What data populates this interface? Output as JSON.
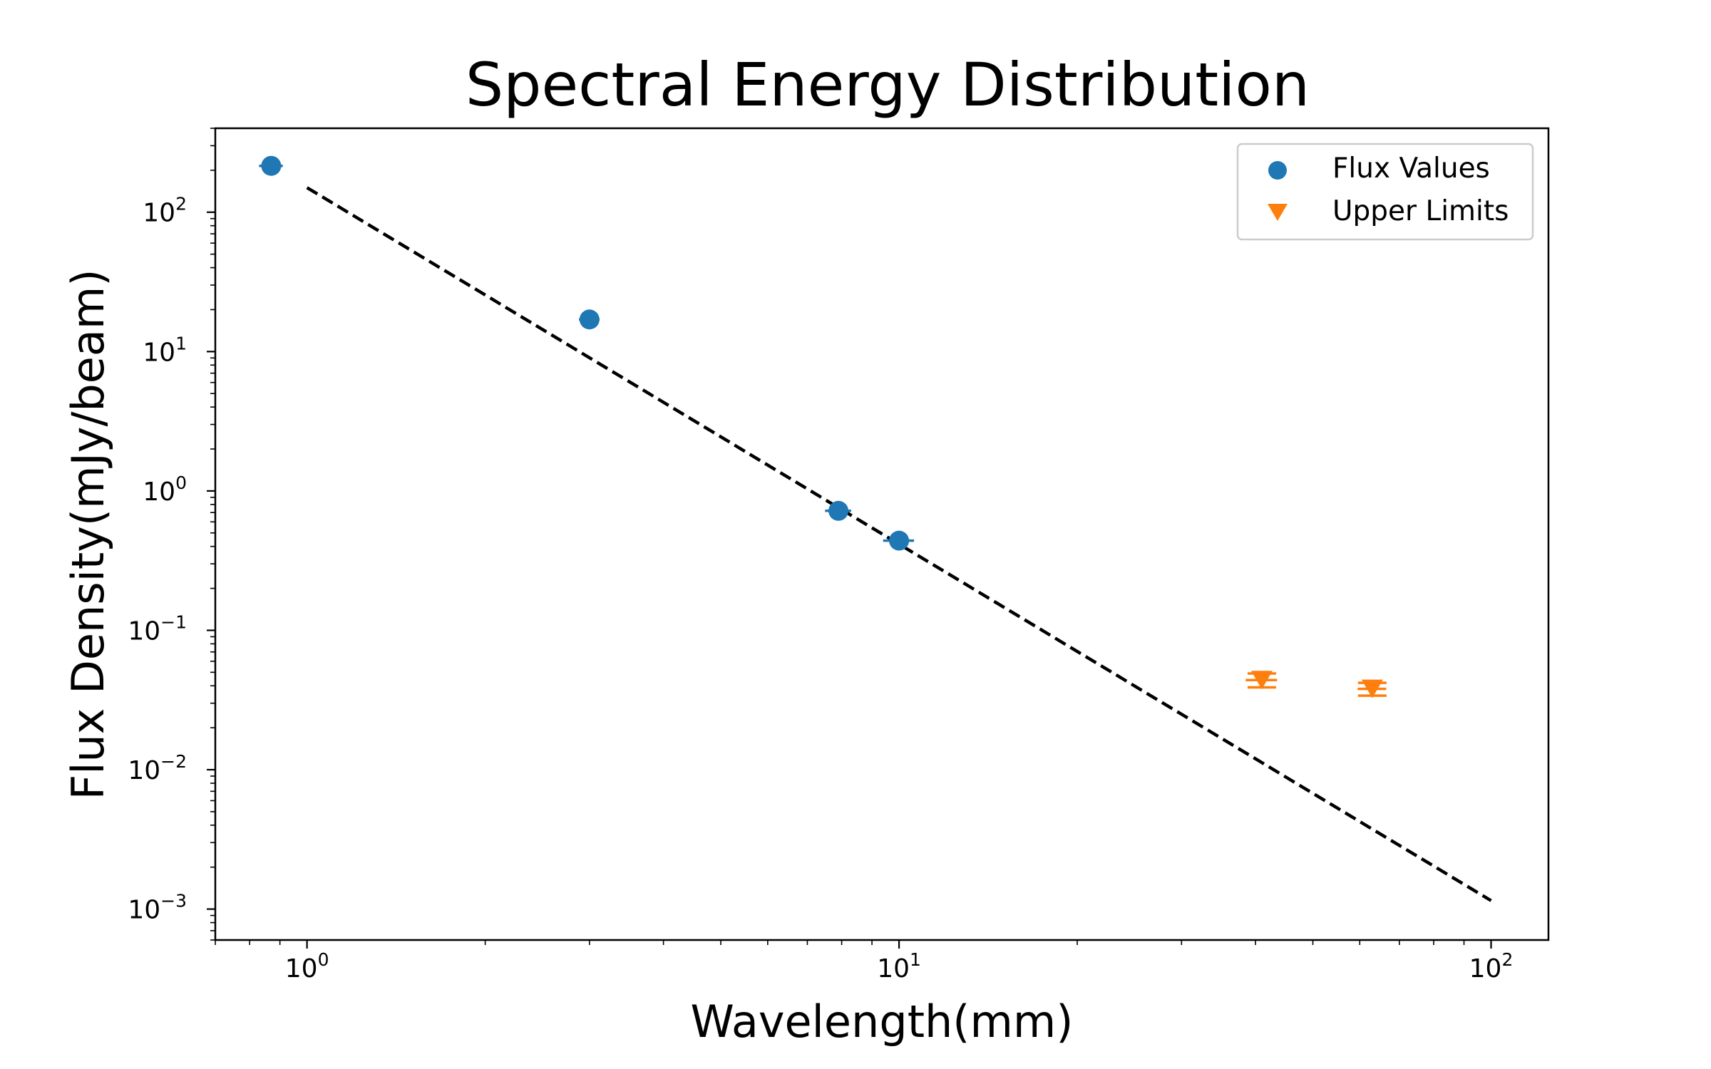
{
  "chart_data": {
    "type": "scatter",
    "title": "Spectral Energy Distribution",
    "xlabel": "Wavelength(mm)",
    "ylabel": "Flux Density(mJy/beam)",
    "xscale": "log",
    "yscale": "log",
    "xlim": [
      0.7,
      125
    ],
    "ylim": [
      0.0006,
      400
    ],
    "x_ticks": [
      {
        "value": 1,
        "base": "10",
        "exp": "0"
      },
      {
        "value": 10,
        "base": "10",
        "exp": "1"
      },
      {
        "value": 100,
        "base": "10",
        "exp": "2"
      }
    ],
    "y_ticks": [
      {
        "value": 0.001,
        "base": "10",
        "exp": "−3"
      },
      {
        "value": 0.01,
        "base": "10",
        "exp": "−2"
      },
      {
        "value": 0.1,
        "base": "10",
        "exp": "−1"
      },
      {
        "value": 1,
        "base": "10",
        "exp": "0"
      },
      {
        "value": 10,
        "base": "10",
        "exp": "1"
      },
      {
        "value": 100,
        "base": "10",
        "exp": "2"
      }
    ],
    "legend_position": "top-right",
    "grid": false,
    "series": [
      {
        "name": "Flux Values",
        "marker": "circle",
        "color": "#1f77b4",
        "points": [
          {
            "x": 0.87,
            "y": 215,
            "xerr": 0.04
          },
          {
            "x": 3.0,
            "y": 17,
            "xerr": 0.12
          },
          {
            "x": 7.9,
            "y": 0.72,
            "xerr": 0.4
          },
          {
            "x": 10.0,
            "y": 0.44,
            "xerr": 0.6
          }
        ]
      },
      {
        "name": "Upper Limits",
        "marker": "triangle-down",
        "color": "#ff7f0e",
        "points": [
          {
            "x": 41,
            "y": 0.044,
            "xerr": 2.5,
            "yerr_lo": 0.005,
            "yerr_hi": 0.005
          },
          {
            "x": 63,
            "y": 0.038,
            "xerr": 3.5,
            "yerr_lo": 0.004,
            "yerr_hi": 0.004
          }
        ]
      }
    ],
    "fit_line": {
      "style": "dashed",
      "color": "#000000",
      "points": [
        {
          "x": 1.0,
          "y": 150
        },
        {
          "x": 100,
          "y": 0.00115
        }
      ]
    }
  }
}
